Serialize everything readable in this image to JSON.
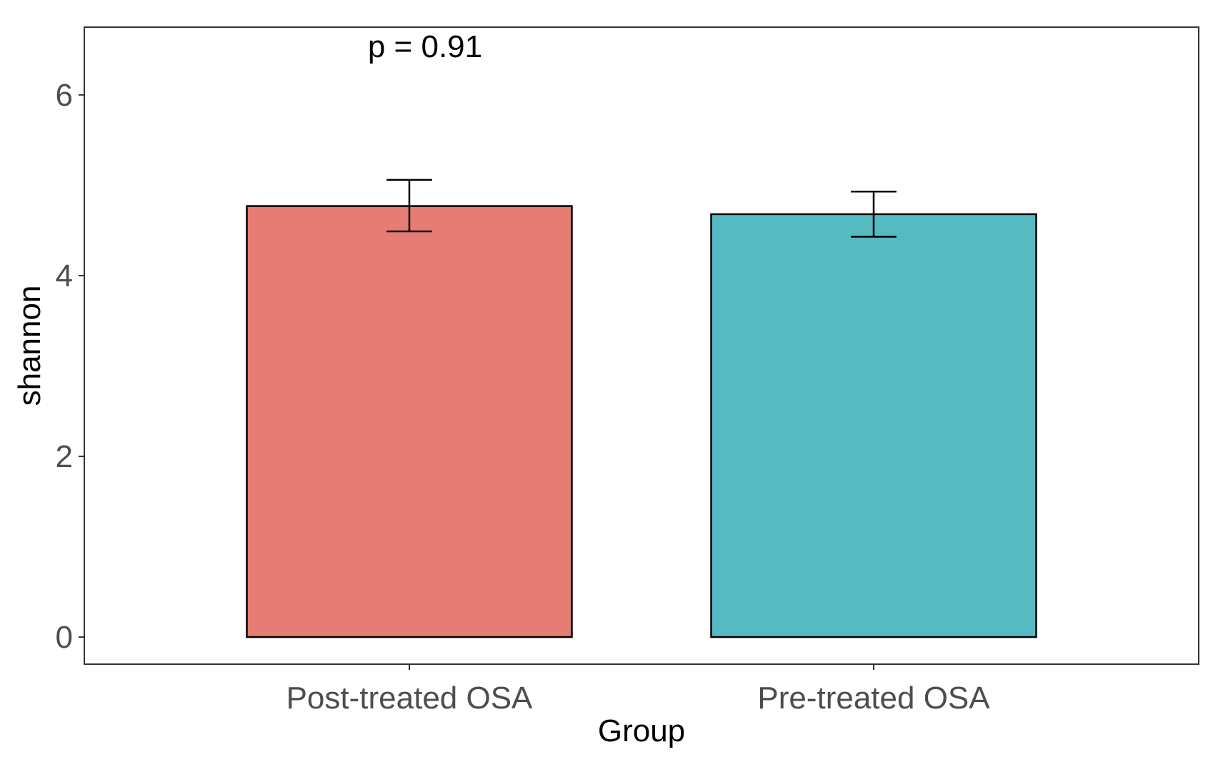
{
  "chart_data": {
    "type": "bar",
    "title": "",
    "xlabel": "Group",
    "ylabel": "shannon",
    "categories": [
      "Post-treated OSA",
      "Pre-treated OSA"
    ],
    "values": [
      4.77,
      4.68
    ],
    "error_bars": [
      {
        "lower": 4.49,
        "upper": 5.06
      },
      {
        "lower": 4.43,
        "upper": 4.93
      }
    ],
    "colors": [
      "#E67C73",
      "#56BAC2"
    ],
    "ylim": [
      -0.3,
      6.75
    ],
    "yticks": [
      0,
      2,
      4,
      6
    ],
    "ytick_labels": [
      "0",
      "2",
      "4",
      "6"
    ],
    "annotation": "p = 0.91",
    "grid": false,
    "legend": "none"
  }
}
